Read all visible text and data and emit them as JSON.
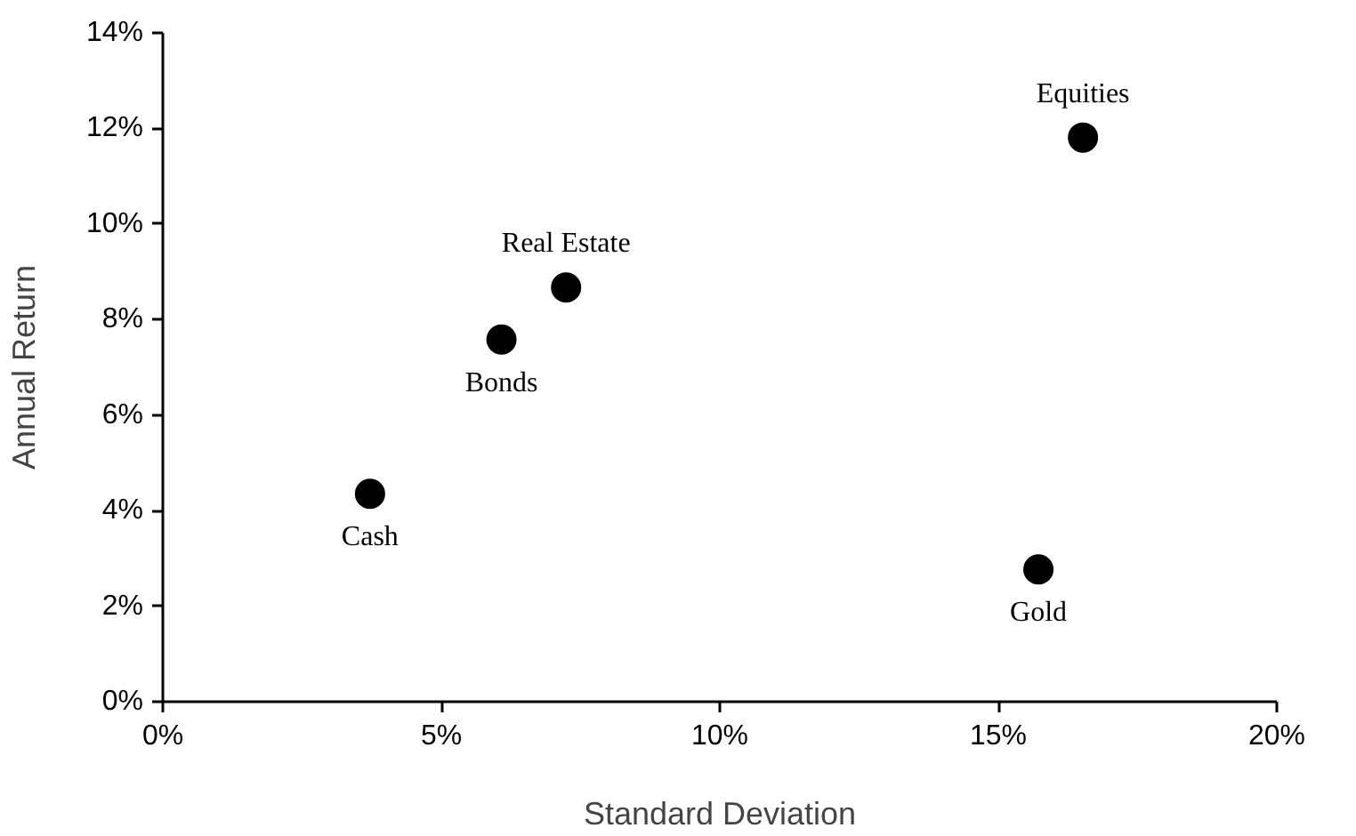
{
  "chart_data": {
    "type": "scatter",
    "xlabel": "Standard Deviation",
    "ylabel": "Annual Return",
    "x": [
      3.72,
      6.08,
      7.24,
      16.52,
      15.72
    ],
    "values": [
      4.35,
      7.58,
      8.67,
      11.81,
      2.77
    ],
    "color": "#000000",
    "marker": "circle",
    "grid": false,
    "xlim": [
      0,
      20
    ],
    "ylim": [
      0,
      14
    ],
    "xticks": [
      {
        "value": 0,
        "label": "0%"
      },
      {
        "value": 5,
        "label": "5%"
      },
      {
        "value": 10,
        "label": "10%"
      },
      {
        "value": 15,
        "label": "15%"
      },
      {
        "value": 20,
        "label": "20%"
      }
    ],
    "yticks": [
      {
        "value": 0,
        "label": "0%"
      },
      {
        "value": 2,
        "label": "2%"
      },
      {
        "value": 4,
        "label": "4%"
      },
      {
        "value": 6,
        "label": "6%"
      },
      {
        "value": 8,
        "label": "8%"
      },
      {
        "value": 10,
        "label": "10%"
      },
      {
        "value": 12,
        "label": "12%"
      },
      {
        "value": 14,
        "label": "14%"
      }
    ],
    "annotations": [
      {
        "text": "Cash",
        "x": 3.72,
        "y": 4.35
      },
      {
        "text": "Bonds",
        "x": 6.08,
        "y": 7.58
      },
      {
        "text": "Real Estate",
        "x": 7.24,
        "y": 8.67
      },
      {
        "text": "Equities",
        "x": 16.52,
        "y": 11.81
      },
      {
        "text": "Gold",
        "x": 15.72,
        "y": 2.77
      }
    ]
  }
}
